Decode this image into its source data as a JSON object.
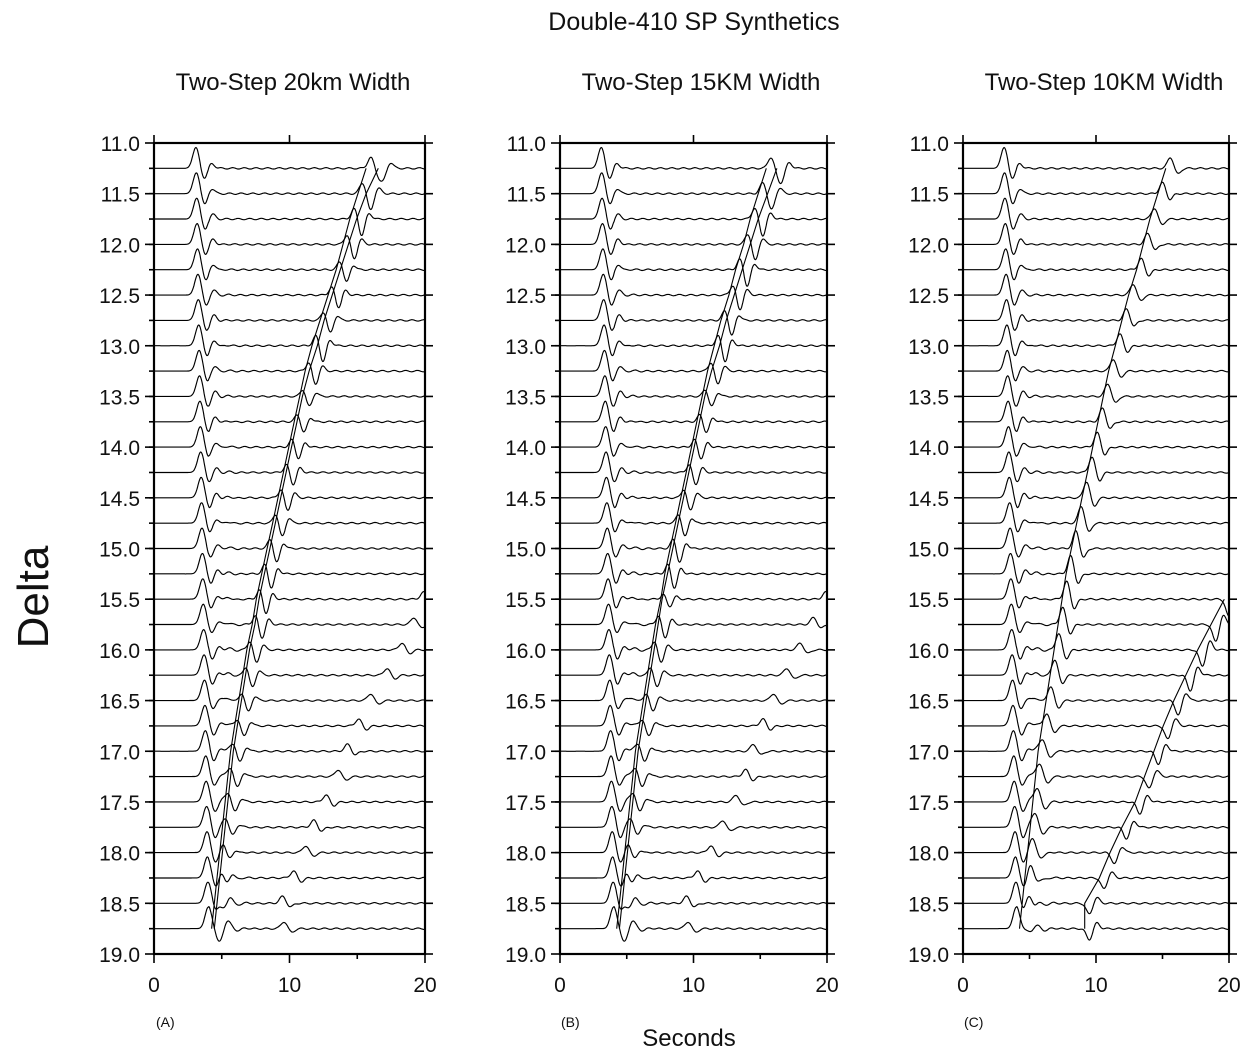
{
  "title": "Double-410 SP Synthetics",
  "x_axis_label": "Seconds",
  "y_axis_label": "Delta",
  "chart_data": [
    {
      "type": "line",
      "title": "Two-Step 20km Width",
      "panel_tag": "(A)",
      "xlabel": "Seconds",
      "ylabel": "Delta",
      "xlim": [
        0,
        20
      ],
      "ylim": [
        11.0,
        19.0
      ],
      "x_ticks": [
        "0",
        "10",
        "20"
      ],
      "y_ticks": [
        "11.0",
        "11.5",
        "12.0",
        "12.5",
        "13.0",
        "13.5",
        "14.0",
        "14.5",
        "15.0",
        "15.5",
        "16.0",
        "16.5",
        "17.0",
        "17.5",
        "18.0",
        "18.5",
        "19.0"
      ],
      "trace_deltas": [
        11.25,
        11.5,
        11.75,
        12.0,
        12.25,
        12.5,
        12.75,
        13.0,
        13.25,
        13.5,
        13.75,
        14.0,
        14.25,
        14.5,
        14.75,
        15.0,
        15.25,
        15.5,
        15.75,
        16.0,
        16.25,
        16.5,
        16.75,
        17.0,
        17.25,
        17.5,
        17.75,
        18.0,
        18.25,
        18.5,
        18.75
      ],
      "series": [
        {
          "x": [
            16.0,
            15.4,
            14.8,
            14.3,
            13.8,
            13.2,
            12.6,
            12.0,
            11.5,
            11.1,
            10.7,
            10.3,
            9.9,
            9.5,
            9.1,
            8.7,
            8.3,
            7.9,
            7.6,
            7.2,
            6.9,
            6.6,
            6.3,
            6.0,
            5.8,
            5.6,
            5.4,
            5.2,
            5.0,
            4.8,
            4.6
          ]
        },
        {
          "x": [
            16.9,
            16.0,
            15.3,
            14.7,
            14.1,
            13.5,
            12.9,
            12.4,
            11.8,
            11.3,
            10.9,
            10.5,
            10.1,
            9.7,
            9.3,
            8.9,
            8.5,
            8.1,
            7.8,
            7.4,
            7.1,
            6.8,
            6.5,
            6.2,
            6.0,
            5.8,
            5.6,
            5.4,
            5.2,
            5.0,
            4.8
          ]
        },
        {
          "x": [
            21.0,
            21.0,
            21.0,
            21.0,
            21.0,
            21.0,
            21.0,
            21.0,
            21.0,
            21.0,
            21.0,
            21.0,
            21.0,
            21.0,
            21.0,
            21.0,
            21.0,
            19.9,
            19.2,
            18.3,
            17.2,
            16.0,
            15.1,
            14.3,
            13.6,
            12.7,
            11.8,
            11.2,
            10.3,
            9.5,
            9.6
          ]
        }
      ]
    },
    {
      "type": "line",
      "title": "Two-Step 15KM Width",
      "panel_tag": "(B)",
      "xlabel": "Seconds",
      "ylabel": "Delta",
      "xlim": [
        0,
        20
      ],
      "ylim": [
        11.0,
        19.0
      ],
      "x_ticks": [
        "0",
        "10",
        "20"
      ],
      "y_ticks": [
        "11.0",
        "11.5",
        "12.0",
        "12.5",
        "13.0",
        "13.5",
        "14.0",
        "14.5",
        "15.0",
        "15.5",
        "16.0",
        "16.5",
        "17.0",
        "17.5",
        "18.0",
        "18.5",
        "19.0"
      ],
      "trace_deltas": [
        11.25,
        11.5,
        11.75,
        12.0,
        12.25,
        12.5,
        12.75,
        13.0,
        13.25,
        13.5,
        13.75,
        14.0,
        14.25,
        14.5,
        14.75,
        15.0,
        15.25,
        15.5,
        15.75,
        16.0,
        16.25,
        16.5,
        16.75,
        17.0,
        17.25,
        17.5,
        17.75,
        18.0,
        18.25,
        18.5,
        18.75
      ],
      "series": [
        {
          "x": [
            15.8,
            15.2,
            14.6,
            14.1,
            13.5,
            13.0,
            12.4,
            11.9,
            11.4,
            11.0,
            10.6,
            10.2,
            9.8,
            9.4,
            9.0,
            8.6,
            8.2,
            7.9,
            7.5,
            7.2,
            6.9,
            6.6,
            6.3,
            6.0,
            5.8,
            5.6,
            5.4,
            5.2,
            5.0,
            4.8,
            4.6
          ]
        },
        {
          "x": [
            16.6,
            15.9,
            15.2,
            14.6,
            14.0,
            13.4,
            12.8,
            12.3,
            11.7,
            11.2,
            10.8,
            10.4,
            10.0,
            9.6,
            9.2,
            8.8,
            8.4,
            8.0,
            7.7,
            7.4,
            7.1,
            6.8,
            6.5,
            6.2,
            6.0,
            5.8,
            5.6,
            5.4,
            5.2,
            5.0,
            4.8
          ]
        },
        {
          "x": [
            21.0,
            21.0,
            21.0,
            21.0,
            21.0,
            21.0,
            21.0,
            21.0,
            21.0,
            21.0,
            21.0,
            21.0,
            21.0,
            21.0,
            21.0,
            21.0,
            21.0,
            19.9,
            19.0,
            18.0,
            17.0,
            16.0,
            15.2,
            14.5,
            13.9,
            13.2,
            12.2,
            11.3,
            10.3,
            9.5,
            9.6
          ]
        }
      ]
    },
    {
      "type": "line",
      "title": "Two-Step 10KM Width",
      "panel_tag": "(C)",
      "xlabel": "Seconds",
      "ylabel": "Delta",
      "xlim": [
        0,
        20
      ],
      "ylim": [
        11.0,
        19.0
      ],
      "x_ticks": [
        "0",
        "10",
        "20"
      ],
      "y_ticks": [
        "11.0",
        "11.5",
        "12.0",
        "12.5",
        "13.0",
        "13.5",
        "14.0",
        "14.5",
        "15.0",
        "15.5",
        "16.0",
        "16.5",
        "17.0",
        "17.5",
        "18.0",
        "18.5",
        "19.0"
      ],
      "trace_deltas": [
        11.25,
        11.5,
        11.75,
        12.0,
        12.25,
        12.5,
        12.75,
        13.0,
        13.25,
        13.5,
        13.75,
        14.0,
        14.25,
        14.5,
        14.75,
        15.0,
        15.25,
        15.5,
        15.75,
        16.0,
        16.25,
        16.5,
        16.75,
        17.0,
        17.25,
        17.5,
        17.75,
        18.0,
        18.25,
        18.5,
        18.75
      ],
      "series": [
        {
          "x": [
            15.6,
            15.0,
            14.4,
            13.9,
            13.4,
            12.8,
            12.3,
            11.8,
            11.3,
            10.9,
            10.5,
            10.1,
            9.7,
            9.3,
            8.9,
            8.5,
            8.1,
            7.8,
            7.5,
            7.2,
            6.9,
            6.6,
            6.3,
            6.0,
            5.8,
            5.6,
            5.4,
            5.2,
            5.0,
            4.8,
            4.6
          ]
        },
        {
          "x": [
            21.0,
            21.0,
            21.0,
            21.0,
            21.0,
            21.0,
            21.0,
            21.0,
            21.0,
            21.0,
            21.0,
            21.0,
            21.0,
            21.0,
            21.0,
            21.0,
            21.0,
            20.0,
            19.0,
            18.0,
            17.1,
            16.2,
            15.4,
            14.7,
            14.0,
            13.3,
            12.3,
            11.4,
            10.6,
            9.5,
            9.5
          ]
        }
      ]
    }
  ]
}
